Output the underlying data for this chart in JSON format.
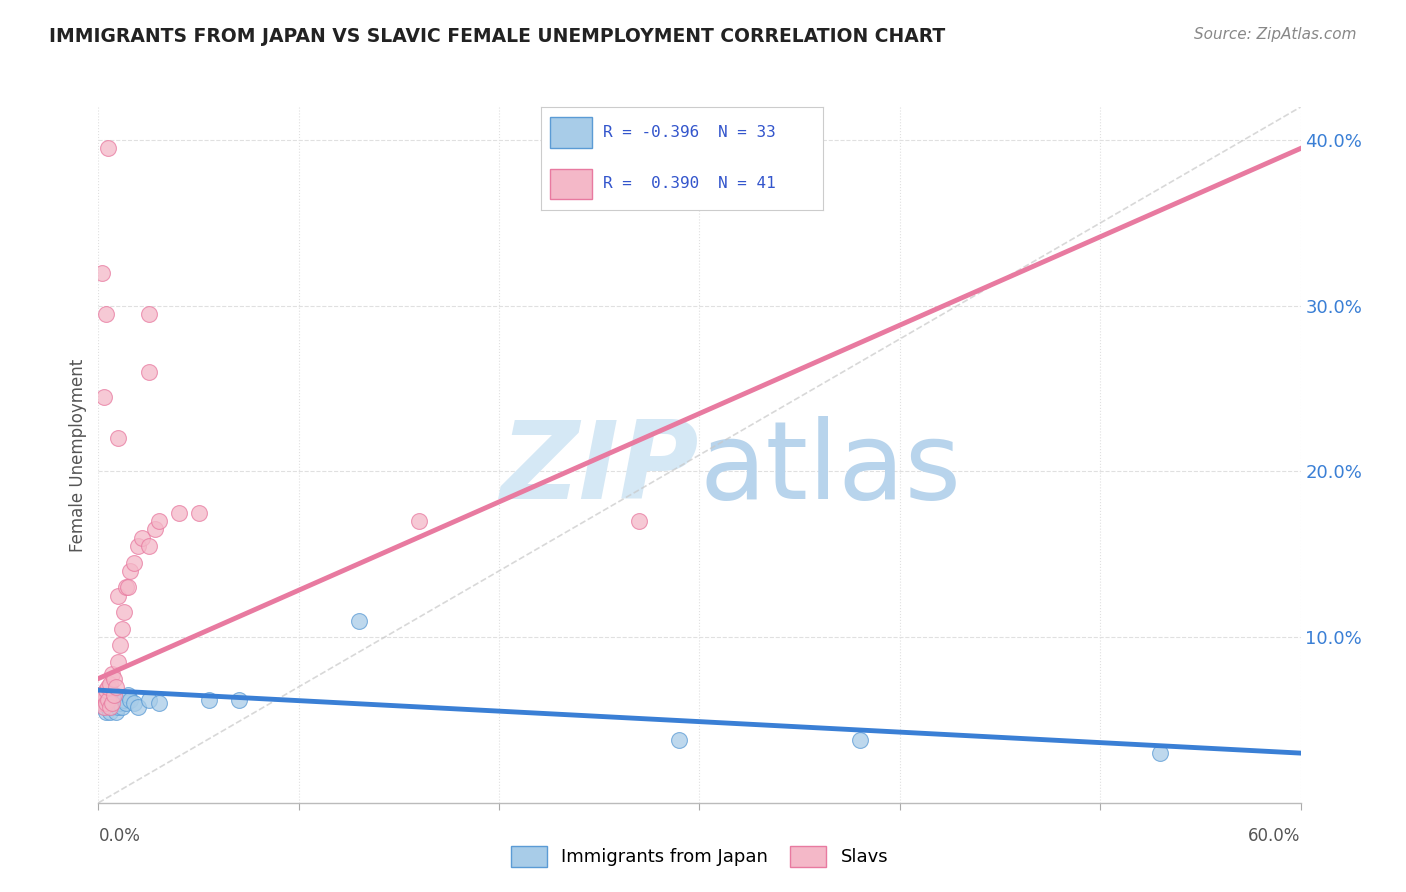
{
  "title": "IMMIGRANTS FROM JAPAN VS SLAVIC FEMALE UNEMPLOYMENT CORRELATION CHART",
  "source": "Source: ZipAtlas.com",
  "ylabel": "Female Unemployment",
  "xlim": [
    0.0,
    0.6
  ],
  "ylim": [
    0.0,
    0.42
  ],
  "ytick_values": [
    0.1,
    0.2,
    0.3,
    0.4
  ],
  "xtick_values": [
    0.0,
    0.1,
    0.2,
    0.3,
    0.4,
    0.5,
    0.6
  ],
  "r1": -0.396,
  "n1": 33,
  "r2": 0.39,
  "n2": 41,
  "color_japan": "#a8cce8",
  "color_japan_edge": "#5b9bd5",
  "color_japan_line": "#3a7fd5",
  "color_slavic": "#f4b8c8",
  "color_slavic_edge": "#e87aa0",
  "color_slavic_line": "#e87aa0",
  "color_diagonal": "#c8c8c8",
  "background_color": "#ffffff",
  "watermark_zip": "ZIP",
  "watermark_atlas": "atlas",
  "japan_points": [
    [
      0.001,
      0.065
    ],
    [
      0.002,
      0.06
    ],
    [
      0.003,
      0.058
    ],
    [
      0.003,
      0.062
    ],
    [
      0.004,
      0.055
    ],
    [
      0.004,
      0.063
    ],
    [
      0.005,
      0.058
    ],
    [
      0.005,
      0.06
    ],
    [
      0.006,
      0.055
    ],
    [
      0.006,
      0.062
    ],
    [
      0.007,
      0.058
    ],
    [
      0.008,
      0.06
    ],
    [
      0.008,
      0.065
    ],
    [
      0.009,
      0.055
    ],
    [
      0.009,
      0.062
    ],
    [
      0.01,
      0.06
    ],
    [
      0.01,
      0.058
    ],
    [
      0.011,
      0.06
    ],
    [
      0.012,
      0.058
    ],
    [
      0.013,
      0.062
    ],
    [
      0.014,
      0.06
    ],
    [
      0.015,
      0.065
    ],
    [
      0.016,
      0.062
    ],
    [
      0.018,
      0.06
    ],
    [
      0.02,
      0.058
    ],
    [
      0.025,
      0.062
    ],
    [
      0.03,
      0.06
    ],
    [
      0.055,
      0.062
    ],
    [
      0.07,
      0.062
    ],
    [
      0.13,
      0.11
    ],
    [
      0.29,
      0.038
    ],
    [
      0.38,
      0.038
    ],
    [
      0.53,
      0.03
    ]
  ],
  "slavic_points": [
    [
      0.001,
      0.065
    ],
    [
      0.002,
      0.06
    ],
    [
      0.002,
      0.065
    ],
    [
      0.003,
      0.058
    ],
    [
      0.003,
      0.065
    ],
    [
      0.004,
      0.06
    ],
    [
      0.004,
      0.068
    ],
    [
      0.005,
      0.062
    ],
    [
      0.005,
      0.07
    ],
    [
      0.006,
      0.058
    ],
    [
      0.006,
      0.072
    ],
    [
      0.007,
      0.078
    ],
    [
      0.007,
      0.06
    ],
    [
      0.008,
      0.065
    ],
    [
      0.008,
      0.075
    ],
    [
      0.009,
      0.07
    ],
    [
      0.01,
      0.085
    ],
    [
      0.01,
      0.125
    ],
    [
      0.011,
      0.095
    ],
    [
      0.012,
      0.105
    ],
    [
      0.013,
      0.115
    ],
    [
      0.014,
      0.13
    ],
    [
      0.015,
      0.13
    ],
    [
      0.016,
      0.14
    ],
    [
      0.018,
      0.145
    ],
    [
      0.02,
      0.155
    ],
    [
      0.022,
      0.16
    ],
    [
      0.025,
      0.155
    ],
    [
      0.028,
      0.165
    ],
    [
      0.03,
      0.17
    ],
    [
      0.04,
      0.175
    ],
    [
      0.05,
      0.175
    ],
    [
      0.003,
      0.245
    ],
    [
      0.004,
      0.295
    ],
    [
      0.002,
      0.32
    ],
    [
      0.16,
      0.17
    ],
    [
      0.27,
      0.17
    ],
    [
      0.005,
      0.395
    ],
    [
      0.025,
      0.26
    ],
    [
      0.025,
      0.295
    ],
    [
      0.01,
      0.22
    ]
  ]
}
